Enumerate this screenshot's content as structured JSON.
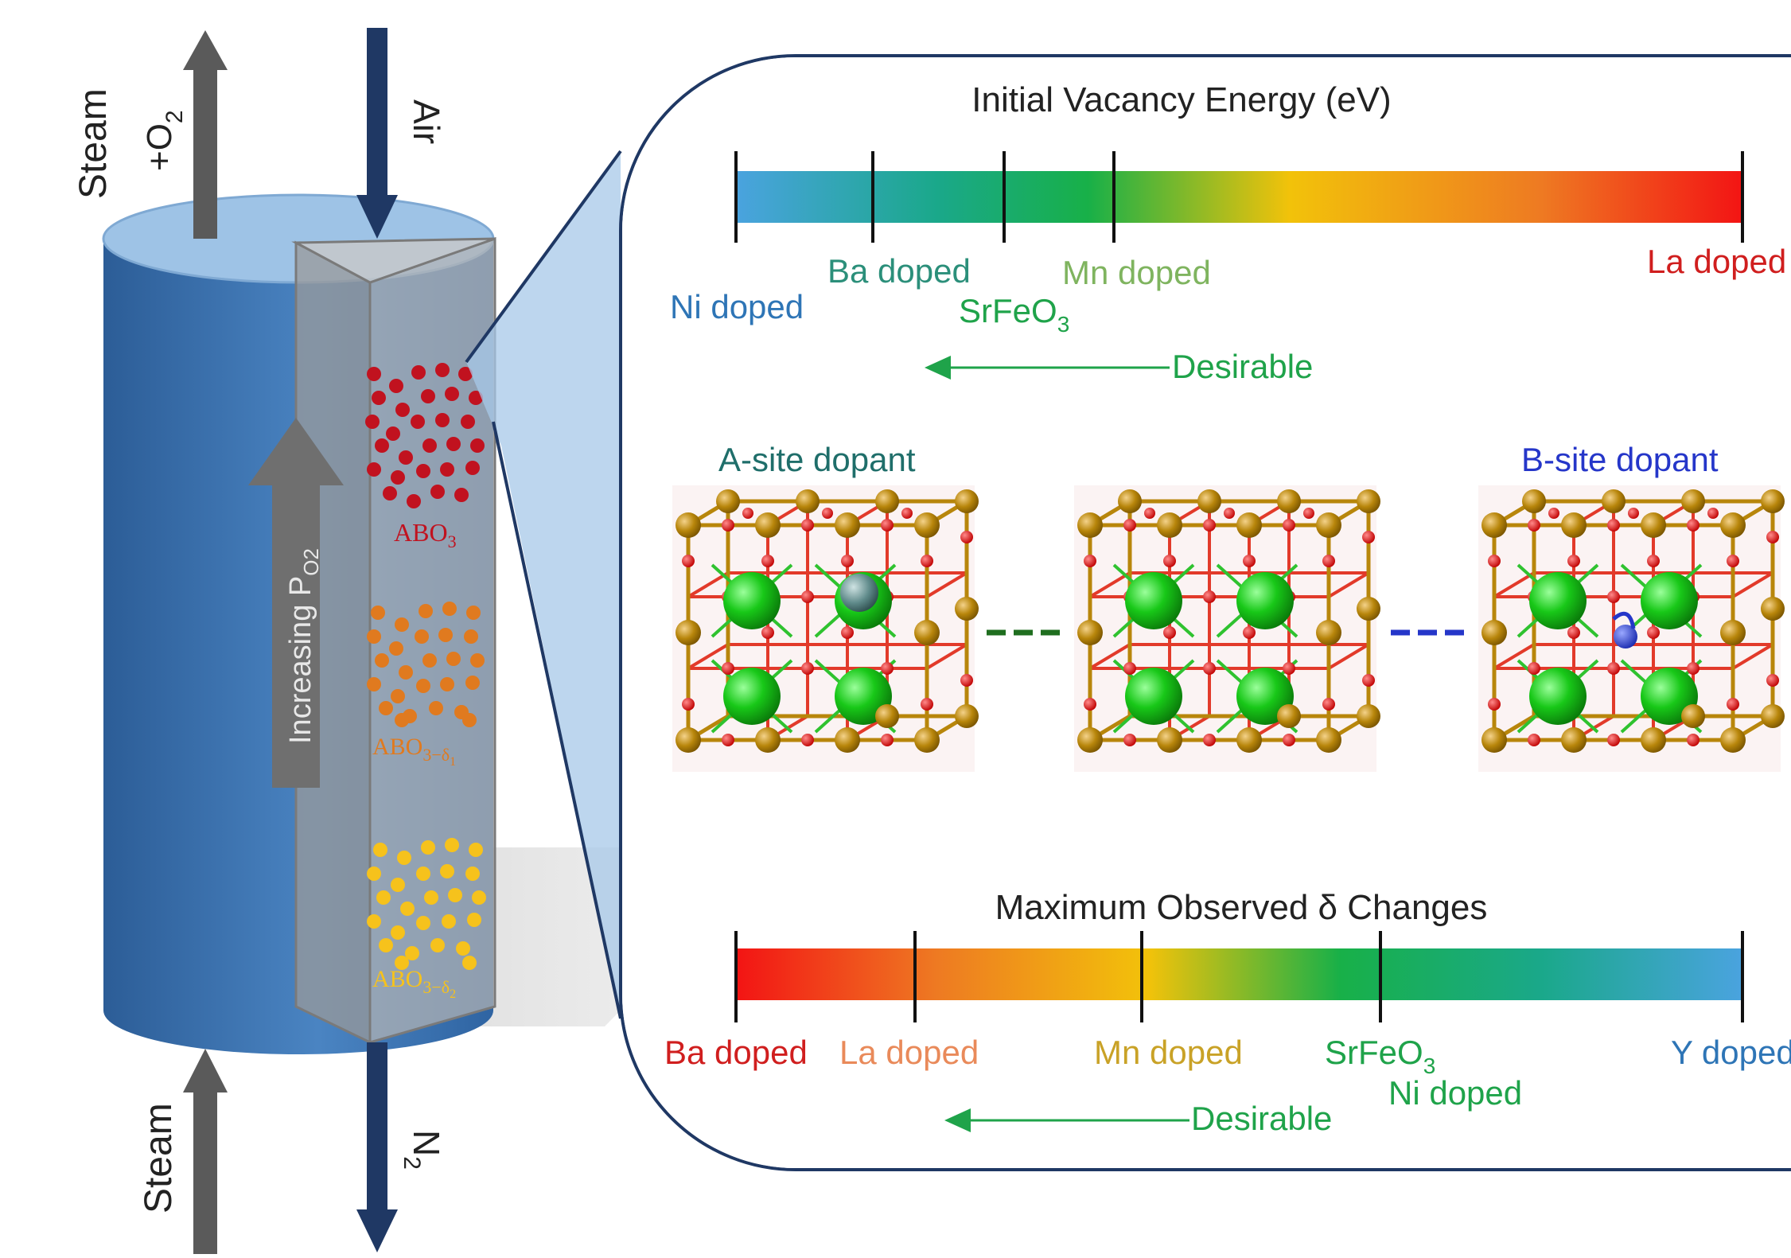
{
  "reactor": {
    "top_left_flow": {
      "main": "Steam",
      "sub_base": "+O",
      "sub_index": "2"
    },
    "top_right_flow": {
      "label": "Air"
    },
    "bottom_left_flow": {
      "label": "Steam"
    },
    "bottom_right_flow": {
      "base": "N",
      "index": "2"
    },
    "gradient_arrow": {
      "base": "Increasing P",
      "sub": "O2"
    },
    "particles": [
      {
        "base": "ABO",
        "sub": "3",
        "color": "#c1121f"
      },
      {
        "base": "ABO",
        "sub": "3−δ",
        "subsub": "1",
        "color": "#e07a1f"
      },
      {
        "base": "ABO",
        "sub": "3−δ",
        "subsub": "2",
        "color": "#f6c21c"
      }
    ],
    "colors": {
      "cylinder": "#3a6fae",
      "outflow_arrow": "#5a5a5a",
      "air_arrow": "#1f3864"
    }
  },
  "panel": {
    "top_scale": {
      "title": "Initial Vacancy Energy (eV)",
      "labels": [
        {
          "text": "Ni doped",
          "color": "#2e75b6"
        },
        {
          "text": "Ba doped",
          "color": "#2b8f7a"
        },
        {
          "text_base": "SrFeO",
          "text_sub": "3",
          "color": "#1fa34a"
        },
        {
          "text": "Mn doped",
          "color": "#7fb45f"
        },
        {
          "text": "La doped",
          "color": "#d01e1e"
        }
      ],
      "desirable": "Desirable"
    },
    "middle": {
      "a_site_label": "A-site dopant",
      "b_site_label": "B-site dopant",
      "a_site_color": "#1f6e6a",
      "b_site_color": "#2536c9"
    },
    "bottom_scale": {
      "title": "Maximum  Observed  δ Changes",
      "labels": [
        {
          "text": "Ba doped",
          "color": "#d01e1e"
        },
        {
          "text": "La doped",
          "color": "#e98a5a"
        },
        {
          "text": "Mn doped",
          "color": "#c9a227"
        },
        {
          "text_base": "SrFeO",
          "text_sub": "3",
          "color": "#1fa34a"
        },
        {
          "text": "Ni doped",
          "color": "#1fa34a"
        },
        {
          "text": "Y doped",
          "color": "#2e75b6"
        }
      ],
      "desirable": "Desirable"
    }
  }
}
